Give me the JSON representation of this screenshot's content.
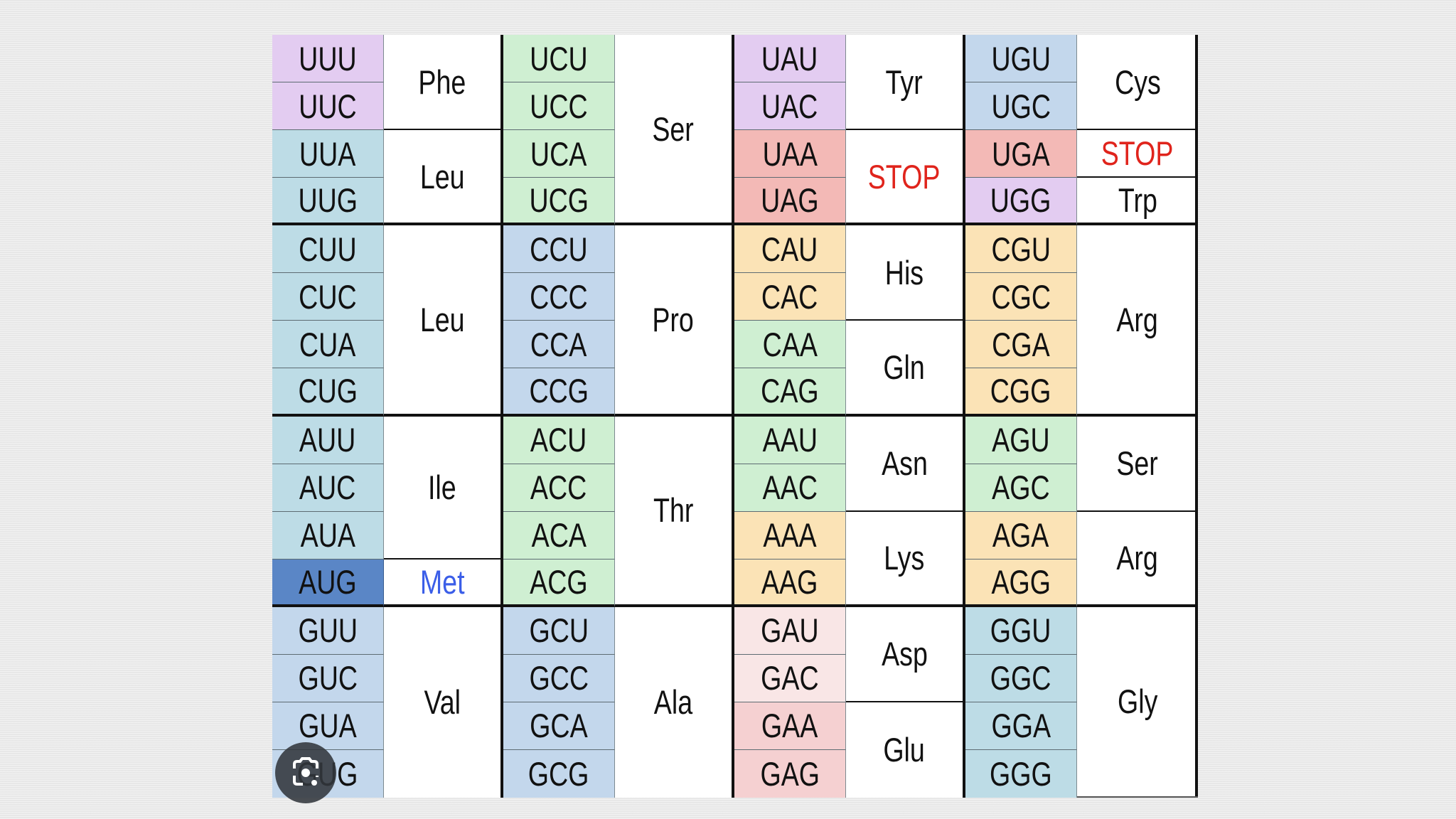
{
  "blocks": [
    {
      "codons": [
        {
          "text": "UUU",
          "color": "#e3ccf1"
        },
        {
          "text": "UUC",
          "color": "#e3ccf1"
        },
        {
          "text": "UUA",
          "color": "#bddce6"
        },
        {
          "text": "UUG",
          "color": "#bddce6"
        },
        {
          "text": "CUU",
          "color": "#bddce6"
        },
        {
          "text": "CUC",
          "color": "#bddce6"
        },
        {
          "text": "CUA",
          "color": "#bddce6"
        },
        {
          "text": "CUG",
          "color": "#bddce6"
        },
        {
          "text": "AUU",
          "color": "#bddce6"
        },
        {
          "text": "AUC",
          "color": "#bddce6"
        },
        {
          "text": "AUA",
          "color": "#bddce6"
        },
        {
          "text": "AUG",
          "color": "#5a86c6"
        },
        {
          "text": "GUU",
          "color": "#c3d7ec"
        },
        {
          "text": "GUC",
          "color": "#c3d7ec"
        },
        {
          "text": "GUA",
          "color": "#c3d7ec"
        },
        {
          "text": "GUG",
          "color": "#c3d7ec"
        }
      ],
      "groups": [
        {
          "label": "Phe",
          "start": 0,
          "span": 2
        },
        {
          "label": "Leu",
          "start": 2,
          "span": 2
        },
        {
          "label": "Leu",
          "start": 4,
          "span": 4
        },
        {
          "label": "Ile",
          "start": 8,
          "span": 3
        },
        {
          "label": "Met",
          "start": 11,
          "span": 1,
          "color": "#3b5ee8"
        },
        {
          "label": "Val",
          "start": 12,
          "span": 4
        }
      ]
    },
    {
      "codons": [
        {
          "text": "UCU",
          "color": "#cfefd2"
        },
        {
          "text": "UCC",
          "color": "#cfefd2"
        },
        {
          "text": "UCA",
          "color": "#cfefd2"
        },
        {
          "text": "UCG",
          "color": "#cfefd2"
        },
        {
          "text": "CCU",
          "color": "#c3d7ec"
        },
        {
          "text": "CCC",
          "color": "#c3d7ec"
        },
        {
          "text": "CCA",
          "color": "#c3d7ec"
        },
        {
          "text": "CCG",
          "color": "#c3d7ec"
        },
        {
          "text": "ACU",
          "color": "#cfefd2"
        },
        {
          "text": "ACC",
          "color": "#cfefd2"
        },
        {
          "text": "ACA",
          "color": "#cfefd2"
        },
        {
          "text": "ACG",
          "color": "#cfefd2"
        },
        {
          "text": "GCU",
          "color": "#c3d7ec"
        },
        {
          "text": "GCC",
          "color": "#c3d7ec"
        },
        {
          "text": "GCA",
          "color": "#c3d7ec"
        },
        {
          "text": "GCG",
          "color": "#c3d7ec"
        }
      ],
      "groups": [
        {
          "label": "Ser",
          "start": 0,
          "span": 4
        },
        {
          "label": "Pro",
          "start": 4,
          "span": 4
        },
        {
          "label": "Thr",
          "start": 8,
          "span": 4
        },
        {
          "label": "Ala",
          "start": 12,
          "span": 4
        }
      ]
    },
    {
      "codons": [
        {
          "text": "UAU",
          "color": "#e3ccf1"
        },
        {
          "text": "UAC",
          "color": "#e3ccf1"
        },
        {
          "text": "UAA",
          "color": "#f3b9b6"
        },
        {
          "text": "UAG",
          "color": "#f3b9b6"
        },
        {
          "text": "CAU",
          "color": "#fbe3b6"
        },
        {
          "text": "CAC",
          "color": "#fbe3b6"
        },
        {
          "text": "CAA",
          "color": "#cfefd2"
        },
        {
          "text": "CAG",
          "color": "#cfefd2"
        },
        {
          "text": "AAU",
          "color": "#cfefd2"
        },
        {
          "text": "AAC",
          "color": "#cfefd2"
        },
        {
          "text": "AAA",
          "color": "#fbe3b6"
        },
        {
          "text": "AAG",
          "color": "#fbe3b6"
        },
        {
          "text": "GAU",
          "color": "#f9e6e6"
        },
        {
          "text": "GAC",
          "color": "#f9e6e6"
        },
        {
          "text": "GAA",
          "color": "#f5d0d1"
        },
        {
          "text": "GAG",
          "color": "#f5d0d1"
        }
      ],
      "groups": [
        {
          "label": "Tyr",
          "start": 0,
          "span": 2
        },
        {
          "label": "STOP",
          "start": 2,
          "span": 2,
          "color": "#e0241c"
        },
        {
          "label": "His",
          "start": 4,
          "span": 2
        },
        {
          "label": "Gln",
          "start": 6,
          "span": 2
        },
        {
          "label": "Asn",
          "start": 8,
          "span": 2
        },
        {
          "label": "Lys",
          "start": 10,
          "span": 2
        },
        {
          "label": "Asp",
          "start": 12,
          "span": 2
        },
        {
          "label": "Glu",
          "start": 14,
          "span": 2
        }
      ]
    },
    {
      "codons": [
        {
          "text": "UGU",
          "color": "#c3d7ec"
        },
        {
          "text": "UGC",
          "color": "#c3d7ec"
        },
        {
          "text": "UGA",
          "color": "#f3b9b6"
        },
        {
          "text": "UGG",
          "color": "#e3ccf1"
        },
        {
          "text": "CGU",
          "color": "#fbe3b6"
        },
        {
          "text": "CGC",
          "color": "#fbe3b6"
        },
        {
          "text": "CGA",
          "color": "#fbe3b6"
        },
        {
          "text": "CGG",
          "color": "#fbe3b6"
        },
        {
          "text": "AGU",
          "color": "#cfefd2"
        },
        {
          "text": "AGC",
          "color": "#cfefd2"
        },
        {
          "text": "AGA",
          "color": "#fbe3b6"
        },
        {
          "text": "AGG",
          "color": "#fbe3b6"
        },
        {
          "text": "GGU",
          "color": "#bddce6"
        },
        {
          "text": "GGC",
          "color": "#bddce6"
        },
        {
          "text": "GGA",
          "color": "#bddce6"
        },
        {
          "text": "GGG",
          "color": "#bddce6"
        }
      ],
      "groups": [
        {
          "label": "Cys",
          "start": 0,
          "span": 2
        },
        {
          "label": "STOP",
          "start": 2,
          "span": 1,
          "color": "#e0241c"
        },
        {
          "label": "Trp",
          "start": 3,
          "span": 1
        },
        {
          "label": "Arg",
          "start": 4,
          "span": 4
        },
        {
          "label": "Ser",
          "start": 8,
          "span": 2
        },
        {
          "label": "Arg",
          "start": 10,
          "span": 2
        },
        {
          "label": "Gly",
          "start": 12,
          "span": 4
        }
      ]
    }
  ],
  "overlay": {
    "icon": "visual-search-camera-icon"
  }
}
